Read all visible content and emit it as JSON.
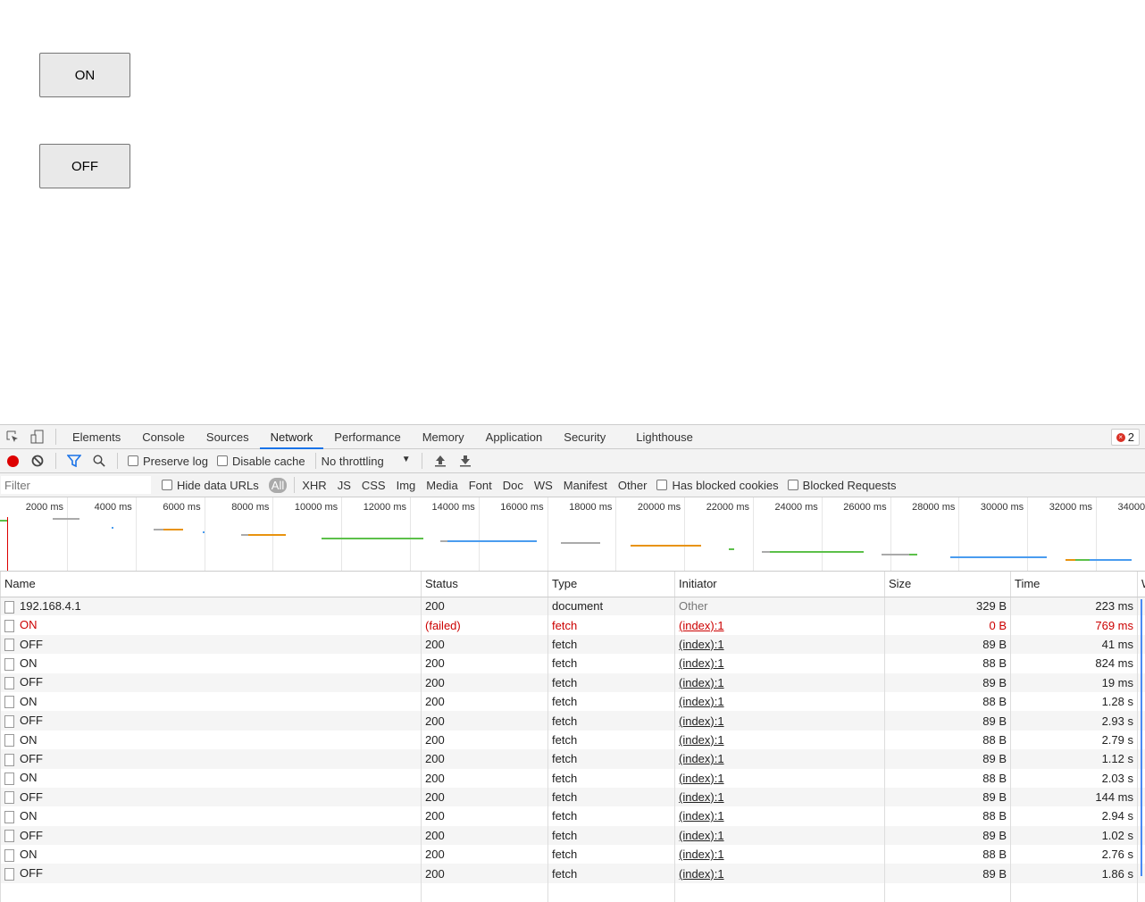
{
  "page": {
    "on_button": "ON",
    "off_button": "OFF"
  },
  "devtools": {
    "tabs": [
      "Elements",
      "Console",
      "Sources",
      "Network",
      "Performance",
      "Memory",
      "Application",
      "Security",
      "Lighthouse"
    ],
    "active_tab": "Network",
    "error_count": "2",
    "toolbar": {
      "preserve_log": "Preserve log",
      "disable_cache": "Disable cache",
      "throttling": "No throttling"
    },
    "filter": {
      "placeholder": "Filter",
      "hide_data_urls": "Hide data URLs",
      "types": [
        "All",
        "XHR",
        "JS",
        "CSS",
        "Img",
        "Media",
        "Font",
        "Doc",
        "WS",
        "Manifest",
        "Other"
      ],
      "has_blocked_cookies": "Has blocked cookies",
      "blocked_requests": "Blocked Requests"
    },
    "timeline_ticks": [
      "2000 ms",
      "4000 ms",
      "6000 ms",
      "8000 ms",
      "10000 ms",
      "12000 ms",
      "14000 ms",
      "16000 ms",
      "18000 ms",
      "20000 ms",
      "22000 ms",
      "24000 ms",
      "26000 ms",
      "28000 ms",
      "30000 ms",
      "32000 ms",
      "34000 ms"
    ],
    "columns": [
      "Name",
      "Status",
      "Type",
      "Initiator",
      "Size",
      "Time",
      "W"
    ],
    "rows": [
      {
        "name": "192.168.4.1",
        "status": "200",
        "type": "document",
        "initiator": "Other",
        "size": "329 B",
        "time": "223 ms"
      },
      {
        "name": "ON",
        "status": "(failed)",
        "type": "fetch",
        "initiator": "(index):1",
        "size": "0 B",
        "time": "769 ms",
        "failed": true
      },
      {
        "name": "OFF",
        "status": "200",
        "type": "fetch",
        "initiator": "(index):1",
        "size": "89 B",
        "time": "41 ms"
      },
      {
        "name": "ON",
        "status": "200",
        "type": "fetch",
        "initiator": "(index):1",
        "size": "88 B",
        "time": "824 ms"
      },
      {
        "name": "OFF",
        "status": "200",
        "type": "fetch",
        "initiator": "(index):1",
        "size": "89 B",
        "time": "19 ms"
      },
      {
        "name": "ON",
        "status": "200",
        "type": "fetch",
        "initiator": "(index):1",
        "size": "88 B",
        "time": "1.28 s"
      },
      {
        "name": "OFF",
        "status": "200",
        "type": "fetch",
        "initiator": "(index):1",
        "size": "89 B",
        "time": "2.93 s"
      },
      {
        "name": "ON",
        "status": "200",
        "type": "fetch",
        "initiator": "(index):1",
        "size": "88 B",
        "time": "2.79 s"
      },
      {
        "name": "OFF",
        "status": "200",
        "type": "fetch",
        "initiator": "(index):1",
        "size": "89 B",
        "time": "1.12 s"
      },
      {
        "name": "ON",
        "status": "200",
        "type": "fetch",
        "initiator": "(index):1",
        "size": "88 B",
        "time": "2.03 s"
      },
      {
        "name": "OFF",
        "status": "200",
        "type": "fetch",
        "initiator": "(index):1",
        "size": "89 B",
        "time": "144 ms"
      },
      {
        "name": "ON",
        "status": "200",
        "type": "fetch",
        "initiator": "(index):1",
        "size": "88 B",
        "time": "2.94 s"
      },
      {
        "name": "OFF",
        "status": "200",
        "type": "fetch",
        "initiator": "(index):1",
        "size": "89 B",
        "time": "1.02 s"
      },
      {
        "name": "ON",
        "status": "200",
        "type": "fetch",
        "initiator": "(index):1",
        "size": "88 B",
        "time": "2.76 s"
      },
      {
        "name": "OFF",
        "status": "200",
        "type": "fetch",
        "initiator": "(index):1",
        "size": "89 B",
        "time": "1.86 s"
      }
    ],
    "colors": {
      "accent": "#1a73e8",
      "record": "#d93025",
      "error": "#cc0000"
    }
  }
}
